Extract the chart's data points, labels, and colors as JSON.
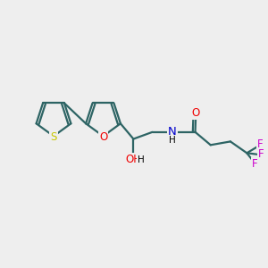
{
  "bg_color": "#eeeeee",
  "bond_color": "#2d6464",
  "bond_width": 1.6,
  "S_color": "#c8c800",
  "O_color": "#ee0000",
  "N_color": "#0000cc",
  "F_color": "#cc00cc",
  "font_size": 8.5,
  "fig_size": [
    3.0,
    3.0
  ],
  "dpi": 100,
  "xlim": [
    0,
    10
  ],
  "ylim": [
    0,
    10
  ]
}
